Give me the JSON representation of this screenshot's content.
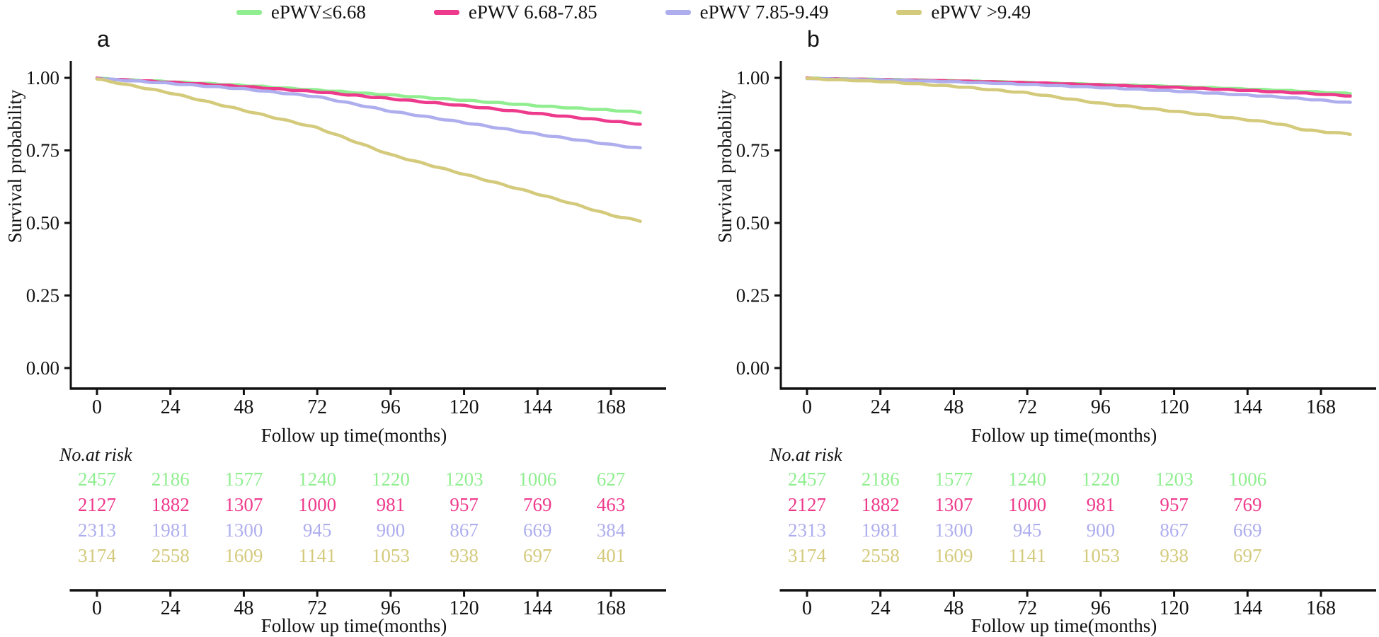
{
  "legend": {
    "items": [
      {
        "label": "ePWV≤6.68",
        "color": "#90ee90"
      },
      {
        "label": "ePWV 6.68-7.85",
        "color": "#ee3a8c"
      },
      {
        "label": "ePWV 7.85-9.49",
        "color": "#aeaeee"
      },
      {
        "label": "ePWV >9.49",
        "color": "#d4ca7c"
      }
    ]
  },
  "chart_data": [
    {
      "type": "line",
      "panel_label": "a",
      "ylabel": "Survival probability",
      "xlabel": "Follow up time(months)",
      "risk_label": "No.at risk",
      "xticks": [
        0,
        24,
        48,
        72,
        96,
        120,
        144,
        168
      ],
      "ytick_labels": [
        "0.00",
        "0.25",
        "0.50",
        "0.75",
        "1.00"
      ],
      "xlim": [
        0,
        178
      ],
      "ylim": [
        0,
        1
      ],
      "grid": false,
      "legend_position": "top",
      "series": [
        {
          "name": "ePWV≤6.68",
          "color": "#90ee90",
          "x": [
            0,
            24,
            48,
            72,
            96,
            120,
            144,
            156,
            168,
            178
          ],
          "y": [
            0.998,
            0.987,
            0.974,
            0.958,
            0.941,
            0.923,
            0.904,
            0.896,
            0.889,
            0.881
          ]
        },
        {
          "name": "ePWV 6.68-7.85",
          "color": "#ee3a8c",
          "x": [
            0,
            24,
            48,
            72,
            96,
            120,
            144,
            156,
            168,
            178
          ],
          "y": [
            0.998,
            0.985,
            0.97,
            0.952,
            0.928,
            0.904,
            0.877,
            0.864,
            0.851,
            0.84
          ]
        },
        {
          "name": "ePWV 7.85-9.49",
          "color": "#aeaeee",
          "x": [
            0,
            24,
            48,
            72,
            96,
            120,
            144,
            156,
            168,
            178
          ],
          "y": [
            0.998,
            0.981,
            0.962,
            0.935,
            0.885,
            0.846,
            0.806,
            0.788,
            0.77,
            0.757
          ]
        },
        {
          "name": "ePWV >9.49",
          "color": "#d4ca7c",
          "x": [
            0,
            24,
            48,
            72,
            96,
            120,
            144,
            156,
            168,
            178
          ],
          "y": [
            0.996,
            0.948,
            0.888,
            0.828,
            0.735,
            0.668,
            0.6,
            0.565,
            0.527,
            0.506
          ]
        }
      ],
      "risk_table": {
        "columns": [
          0,
          24,
          48,
          72,
          96,
          120,
          144,
          168
        ],
        "rows": [
          {
            "name": "ePWV≤6.68",
            "color": "#90ee90",
            "values": [
              2457,
              2186,
              1577,
              1240,
              1220,
              1203,
              1006,
              627
            ]
          },
          {
            "name": "ePWV 6.68-7.85",
            "color": "#ee3a8c",
            "values": [
              2127,
              1882,
              1307,
              1000,
              981,
              957,
              769,
              463
            ]
          },
          {
            "name": "ePWV 7.85-9.49",
            "color": "#aeaeee",
            "values": [
              2313,
              1981,
              1300,
              945,
              900,
              867,
              669,
              384
            ]
          },
          {
            "name": "ePWV >9.49",
            "color": "#d4ca7c",
            "values": [
              3174,
              2558,
              1609,
              1141,
              1053,
              938,
              697,
              401
            ]
          }
        ]
      }
    },
    {
      "type": "line",
      "panel_label": "b",
      "ylabel": "Survival probability",
      "xlabel": "Follow up time(months)",
      "risk_label": "No.at risk",
      "xticks": [
        0,
        24,
        48,
        72,
        96,
        120,
        144,
        168
      ],
      "ytick_labels": [
        "0.00",
        "0.25",
        "0.50",
        "0.75",
        "1.00"
      ],
      "xlim": [
        0,
        178
      ],
      "ylim": [
        0,
        1
      ],
      "grid": false,
      "legend_position": "top",
      "series": [
        {
          "name": "ePWV≤6.68",
          "color": "#90ee90",
          "x": [
            0,
            24,
            48,
            72,
            96,
            120,
            144,
            156,
            168,
            178
          ],
          "y": [
            0.999,
            0.996,
            0.991,
            0.985,
            0.978,
            0.971,
            0.962,
            0.957,
            0.951,
            0.946
          ]
        },
        {
          "name": "ePWV 6.68-7.85",
          "color": "#ee3a8c",
          "x": [
            0,
            24,
            48,
            72,
            96,
            120,
            144,
            156,
            168,
            178
          ],
          "y": [
            0.999,
            0.995,
            0.99,
            0.984,
            0.976,
            0.968,
            0.957,
            0.951,
            0.944,
            0.938
          ]
        },
        {
          "name": "ePWV 7.85-9.49",
          "color": "#aeaeee",
          "x": [
            0,
            24,
            48,
            72,
            96,
            120,
            144,
            156,
            168,
            178
          ],
          "y": [
            0.999,
            0.994,
            0.987,
            0.978,
            0.967,
            0.955,
            0.941,
            0.933,
            0.923,
            0.914
          ]
        },
        {
          "name": "ePWV >9.49",
          "color": "#d4ca7c",
          "x": [
            0,
            24,
            48,
            72,
            96,
            120,
            150,
            156,
            162,
            168,
            178
          ],
          "y": [
            0.998,
            0.988,
            0.971,
            0.948,
            0.912,
            0.885,
            0.848,
            0.838,
            0.822,
            0.815,
            0.806
          ]
        }
      ],
      "risk_table": {
        "columns": [
          0,
          24,
          48,
          72,
          96,
          120,
          144
        ],
        "rows": [
          {
            "name": "ePWV≤6.68",
            "color": "#90ee90",
            "values": [
              2457,
              2186,
              1577,
              1240,
              1220,
              1203,
              1006
            ]
          },
          {
            "name": "ePWV 6.68-7.85",
            "color": "#ee3a8c",
            "values": [
              2127,
              1882,
              1307,
              1000,
              981,
              957,
              769
            ]
          },
          {
            "name": "ePWV 7.85-9.49",
            "color": "#aeaeee",
            "values": [
              2313,
              1981,
              1300,
              945,
              900,
              867,
              669
            ]
          },
          {
            "name": "ePWV >9.49",
            "color": "#d4ca7c",
            "values": [
              3174,
              2558,
              1609,
              1141,
              1053,
              938,
              697
            ]
          }
        ]
      }
    }
  ]
}
